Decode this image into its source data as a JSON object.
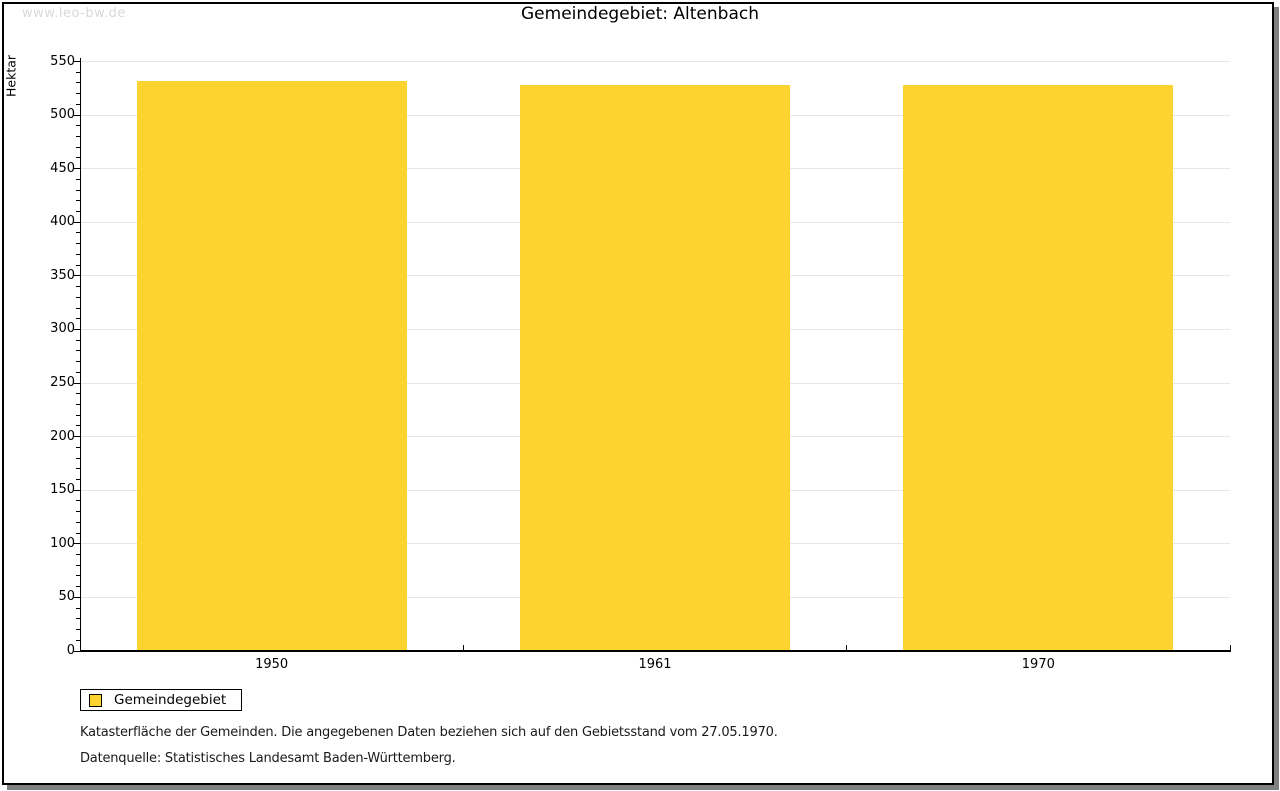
{
  "watermark": "www.leo-bw.de",
  "title": "Gemeindegebiet: Altenbach",
  "chart_data": {
    "type": "bar",
    "categories": [
      "1950",
      "1961",
      "1970"
    ],
    "values": [
      532,
      528,
      528
    ],
    "title": "Gemeindegebiet: Altenbach",
    "xlabel": "",
    "ylabel": "Hektar",
    "ylim": [
      0,
      550
    ],
    "ytick_major_step": 50,
    "ytick_minor_step": 10,
    "grid": "horizontal-major",
    "legend_position": "bottom-left",
    "bar_color": "#FCD32F",
    "grid_color": "#E6E6E6"
  },
  "legend": {
    "label": "Gemeindegebiet"
  },
  "footnotes": [
    "Katasterfläche der Gemeinden. Die angegebenen Daten beziehen sich auf den Gebietsstand vom 27.05.1970.",
    "Datenquelle: Statistisches Landesamt Baden-Württemberg."
  ]
}
